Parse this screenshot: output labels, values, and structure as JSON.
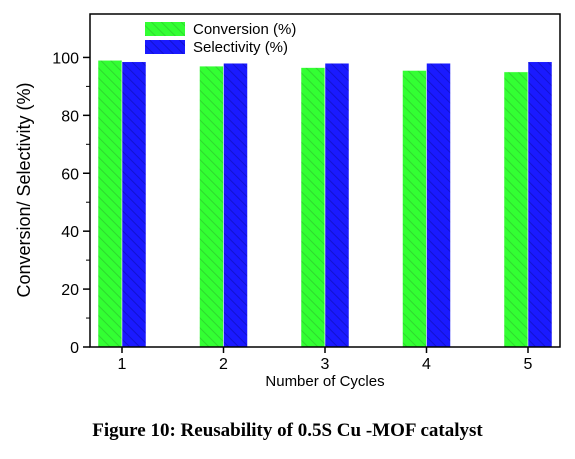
{
  "caption": "Figure 10: Reusability of 0.5S Cu -MOF catalyst",
  "chart_data": {
    "type": "bar",
    "categories": [
      "1",
      "2",
      "3",
      "4",
      "5"
    ],
    "series": [
      {
        "name": "Conversion (%)",
        "values": [
          99,
          97,
          96.5,
          95.5,
          95
        ],
        "color": "#33ff33",
        "hatch": "#2fd82f"
      },
      {
        "name": "Selectivity (%)",
        "values": [
          98.5,
          98,
          98,
          98,
          98.5
        ],
        "color": "#1a1aff",
        "hatch": "#1212d0"
      }
    ],
    "xlabel": "Number of Cycles",
    "ylabel": "Conversion/ Selectivity (%)",
    "ylim": [
      0,
      115
    ],
    "yticks": [
      "0",
      "20",
      "40",
      "60",
      "80",
      "100"
    ],
    "grid": false,
    "legend": "top-center"
  }
}
